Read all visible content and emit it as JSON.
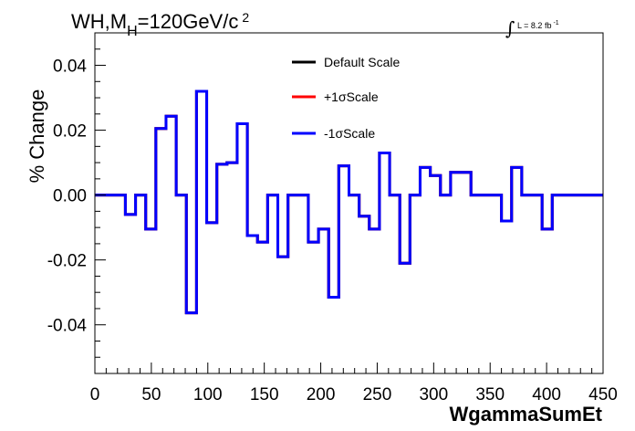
{
  "chart_data": {
    "type": "line",
    "title_main": "WH,M",
    "title_sub": "H",
    "title_rest": "=120GeV/c",
    "title_sup": "2",
    "lumi_label": "L = 8.2 fb",
    "lumi_sup": "-1",
    "xlabel": "WgammaSumEt",
    "ylabel": "% Change",
    "xlim": [
      0,
      450
    ],
    "ylim": [
      -0.055,
      0.05
    ],
    "x_ticks": [
      0,
      50,
      100,
      150,
      200,
      250,
      300,
      350,
      400,
      450
    ],
    "x_tick_labels": [
      "0",
      "50",
      "100",
      "150",
      "200",
      "250",
      "300",
      "350",
      "400",
      "450"
    ],
    "y_ticks": [
      0.04,
      0.02,
      0.0,
      -0.02,
      -0.04
    ],
    "y_tick_labels": [
      "0.04",
      "0.02",
      "0.00",
      "-0.02",
      "-0.04"
    ],
    "bin_edges": [
      0,
      27,
      36,
      45,
      54,
      63,
      72,
      81,
      90,
      99,
      108,
      117,
      126,
      135,
      144,
      153,
      162,
      171,
      180,
      189,
      198,
      207,
      216,
      225,
      234,
      243,
      252,
      261,
      270,
      279,
      288,
      297,
      306,
      315,
      333,
      360,
      369,
      378,
      396,
      405,
      450
    ],
    "series": [
      {
        "name": "Default Scale",
        "color": "#000000",
        "values": [
          0,
          -0.006,
          0,
          -0.0105,
          0.0205,
          0.0243,
          0,
          -0.0363,
          0.032,
          -0.0085,
          0.0095,
          0.01,
          0.022,
          -0.0125,
          -0.0145,
          0,
          -0.019,
          0,
          0,
          -0.0145,
          -0.0105,
          -0.0315,
          0.009,
          0,
          -0.0065,
          -0.0105,
          0.013,
          0,
          -0.021,
          0,
          0.0085,
          0.006,
          0,
          0.007,
          0,
          -0.008,
          0.0085,
          0,
          -0.0105,
          0
        ]
      },
      {
        "name": "+1σScale",
        "color": "#ff0000",
        "values": [
          0,
          -0.006,
          0,
          -0.0105,
          0.0205,
          0.0243,
          0,
          -0.0363,
          0.032,
          -0.0085,
          0.0095,
          0.01,
          0.022,
          -0.0125,
          -0.0145,
          0,
          -0.019,
          0,
          0,
          -0.0145,
          -0.0105,
          -0.0315,
          0.009,
          0,
          -0.0065,
          -0.0105,
          0.013,
          0,
          -0.021,
          0,
          0.0085,
          0.006,
          0,
          0.007,
          0,
          -0.008,
          0.0085,
          0,
          -0.0105,
          0
        ]
      },
      {
        "name": "-1σScale",
        "color": "#0000ff",
        "values": [
          0,
          -0.006,
          0,
          -0.0105,
          0.0205,
          0.0243,
          0,
          -0.0363,
          0.032,
          -0.0085,
          0.0095,
          0.01,
          0.022,
          -0.0125,
          -0.0145,
          0,
          -0.019,
          0,
          0,
          -0.0145,
          -0.0105,
          -0.0315,
          0.009,
          0,
          -0.0065,
          -0.0105,
          0.013,
          0,
          -0.021,
          0,
          0.0085,
          0.006,
          0,
          0.007,
          0,
          -0.008,
          0.0085,
          0,
          -0.0105,
          0
        ]
      }
    ],
    "grid": false,
    "legend_position": "top-center"
  }
}
